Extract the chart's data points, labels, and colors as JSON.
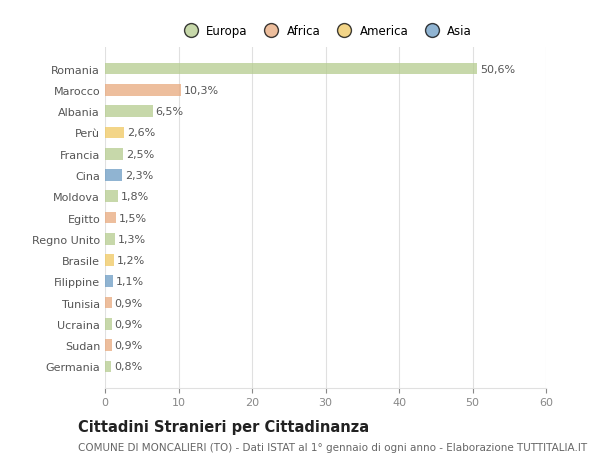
{
  "countries": [
    "Romania",
    "Marocco",
    "Albania",
    "Perù",
    "Francia",
    "Cina",
    "Moldova",
    "Egitto",
    "Regno Unito",
    "Brasile",
    "Filippine",
    "Tunisia",
    "Ucraina",
    "Sudan",
    "Germania"
  ],
  "values": [
    50.6,
    10.3,
    6.5,
    2.6,
    2.5,
    2.3,
    1.8,
    1.5,
    1.3,
    1.2,
    1.1,
    0.9,
    0.9,
    0.9,
    0.8
  ],
  "labels": [
    "50,6%",
    "10,3%",
    "6,5%",
    "2,6%",
    "2,5%",
    "2,3%",
    "1,8%",
    "1,5%",
    "1,3%",
    "1,2%",
    "1,1%",
    "0,9%",
    "0,9%",
    "0,9%",
    "0,8%"
  ],
  "colors": [
    "#b5cc8e",
    "#e8a87c",
    "#b5cc8e",
    "#f0c860",
    "#b5cc8e",
    "#6b9bc3",
    "#b5cc8e",
    "#e8a87c",
    "#b5cc8e",
    "#f0c860",
    "#6b9bc3",
    "#e8a87c",
    "#b5cc8e",
    "#e8a87c",
    "#b5cc8e"
  ],
  "legend": [
    {
      "label": "Europa",
      "color": "#b5cc8e"
    },
    {
      "label": "Africa",
      "color": "#e8a87c"
    },
    {
      "label": "America",
      "color": "#f0c860"
    },
    {
      "label": "Asia",
      "color": "#6b9bc3"
    }
  ],
  "xlim": [
    0,
    60
  ],
  "xticks": [
    0,
    10,
    20,
    30,
    40,
    50,
    60
  ],
  "title": "Cittadini Stranieri per Cittadinanza",
  "subtitle": "COMUNE DI MONCALIERI (TO) - Dati ISTAT al 1° gennaio di ogni anno - Elaborazione TUTTITALIA.IT",
  "background_color": "#ffffff",
  "grid_color": "#e0e0e0",
  "bar_height": 0.55,
  "label_fontsize": 8.0,
  "ytick_fontsize": 8.0,
  "xtick_fontsize": 8.0,
  "title_fontsize": 10.5,
  "subtitle_fontsize": 7.5
}
